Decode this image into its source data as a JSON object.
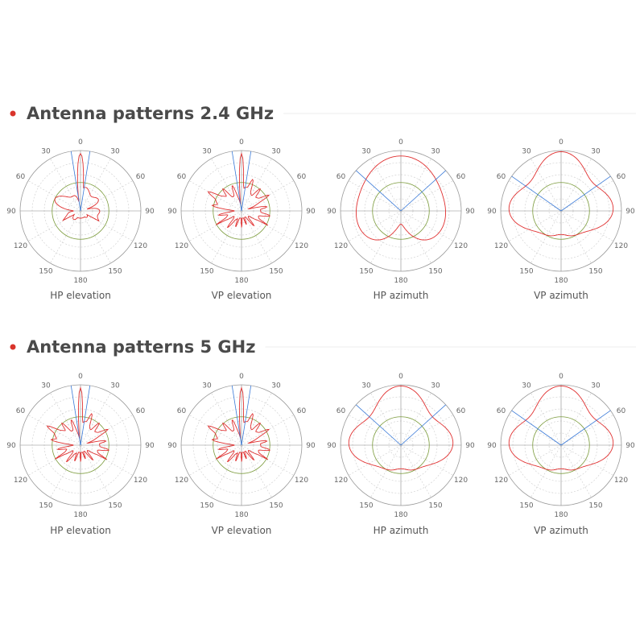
{
  "sections": [
    {
      "title": "Antenna patterns 2.4 GHz",
      "plots": [
        {
          "caption": "HP elevation"
        },
        {
          "caption": "VP elevation"
        },
        {
          "caption": "HP azimuth"
        },
        {
          "caption": "VP azimuth"
        }
      ]
    },
    {
      "title": "Antenna patterns 5 GHz",
      "plots": [
        {
          "caption": "HP elevation"
        },
        {
          "caption": "VP elevation"
        },
        {
          "caption": "HP azimuth"
        },
        {
          "caption": "VP azimuth"
        }
      ]
    }
  ],
  "angle_labels": [
    "0",
    "30",
    "60",
    "90",
    "120",
    "150",
    "180"
  ]
}
